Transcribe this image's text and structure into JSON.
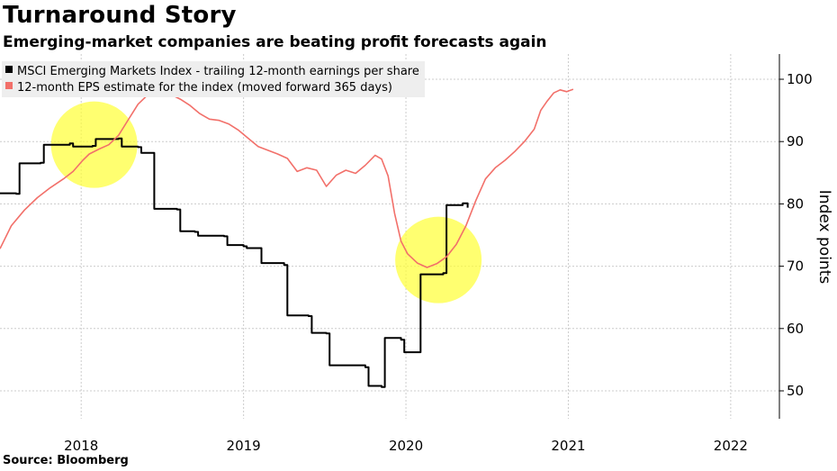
{
  "title": "Turnaround Story",
  "subtitle": "Emerging-market companies are beating profit forecasts again",
  "source": "Source: Bloomberg",
  "colors": {
    "eps": "#000000",
    "estimate": "#f2706a",
    "highlight": "#ffff33",
    "grid": "#cccccc"
  },
  "chart_data": {
    "type": "line",
    "ylabel": "Index points",
    "ylim": [
      45,
      104
    ],
    "xlim": [
      2017.55,
      2022.35
    ],
    "y_ticks": [
      50,
      60,
      70,
      80,
      90,
      100
    ],
    "x_ticks": [
      {
        "x": 2018.05,
        "label": "2018"
      },
      {
        "x": 2019.05,
        "label": "2019"
      },
      {
        "x": 2020.05,
        "label": "2020"
      },
      {
        "x": 2021.05,
        "label": "2021"
      },
      {
        "x": 2022.05,
        "label": "2022"
      }
    ],
    "legend_position": "top-left",
    "grid": true,
    "series": [
      {
        "name": "MSCI Emerging Markets Index - trailing 12-month earnings per share",
        "color": "#000000",
        "style": "step",
        "points": [
          [
            2017.55,
            81.7
          ],
          [
            2017.65,
            81.6
          ],
          [
            2017.67,
            86.5
          ],
          [
            2017.8,
            86.6
          ],
          [
            2017.82,
            89.5
          ],
          [
            2017.98,
            89.7
          ],
          [
            2018.0,
            89.2
          ],
          [
            2018.12,
            89.3
          ],
          [
            2018.14,
            90.4
          ],
          [
            2018.28,
            90.5
          ],
          [
            2018.3,
            89.2
          ],
          [
            2018.4,
            89.1
          ],
          [
            2018.42,
            88.2
          ],
          [
            2018.48,
            88.2
          ],
          [
            2018.5,
            79.2
          ],
          [
            2018.64,
            79.1
          ],
          [
            2018.66,
            75.6
          ],
          [
            2018.75,
            75.5
          ],
          [
            2018.77,
            74.9
          ],
          [
            2018.93,
            74.8
          ],
          [
            2018.95,
            73.4
          ],
          [
            2019.05,
            73.2
          ],
          [
            2019.07,
            72.9
          ],
          [
            2019.14,
            72.9
          ],
          [
            2019.16,
            70.5
          ],
          [
            2019.3,
            70.2
          ],
          [
            2019.32,
            62.1
          ],
          [
            2019.45,
            62.0
          ],
          [
            2019.47,
            59.3
          ],
          [
            2019.56,
            59.2
          ],
          [
            2019.58,
            54.1
          ],
          [
            2019.8,
            53.8
          ],
          [
            2019.82,
            50.8
          ],
          [
            2019.9,
            50.6
          ],
          [
            2019.92,
            58.5
          ],
          [
            2020.02,
            58.2
          ],
          [
            2020.04,
            56.2
          ],
          [
            2020.12,
            56.2
          ],
          [
            2020.14,
            68.7
          ],
          [
            2020.28,
            68.9
          ],
          [
            2020.3,
            79.8
          ],
          [
            2020.4,
            80.1
          ],
          [
            2020.43,
            79.4
          ]
        ]
      },
      {
        "name": "12-month EPS estimate for the index (moved forward 365 days)",
        "color": "#f2706a",
        "style": "line",
        "points": [
          [
            2017.55,
            72.8
          ],
          [
            2017.62,
            76.5
          ],
          [
            2017.7,
            79.0
          ],
          [
            2017.78,
            81.0
          ],
          [
            2017.86,
            82.6
          ],
          [
            2017.94,
            84.0
          ],
          [
            2018.0,
            85.2
          ],
          [
            2018.06,
            87.0
          ],
          [
            2018.1,
            88.0
          ],
          [
            2018.16,
            88.8
          ],
          [
            2018.22,
            89.5
          ],
          [
            2018.28,
            91.0
          ],
          [
            2018.34,
            93.5
          ],
          [
            2018.4,
            96.0
          ],
          [
            2018.46,
            97.5
          ],
          [
            2018.5,
            98.2
          ],
          [
            2018.56,
            98.0
          ],
          [
            2018.6,
            97.6
          ],
          [
            2018.66,
            96.8
          ],
          [
            2018.72,
            95.8
          ],
          [
            2018.78,
            94.5
          ],
          [
            2018.84,
            93.6
          ],
          [
            2018.9,
            93.4
          ],
          [
            2018.96,
            92.8
          ],
          [
            2019.02,
            91.8
          ],
          [
            2019.08,
            90.5
          ],
          [
            2019.14,
            89.2
          ],
          [
            2019.2,
            88.6
          ],
          [
            2019.26,
            88.0
          ],
          [
            2019.32,
            87.3
          ],
          [
            2019.38,
            85.2
          ],
          [
            2019.44,
            85.8
          ],
          [
            2019.5,
            85.4
          ],
          [
            2019.56,
            82.8
          ],
          [
            2019.62,
            84.6
          ],
          [
            2019.68,
            85.4
          ],
          [
            2019.74,
            84.9
          ],
          [
            2019.8,
            86.2
          ],
          [
            2019.86,
            87.8
          ],
          [
            2019.9,
            87.2
          ],
          [
            2019.94,
            84.5
          ],
          [
            2019.98,
            78.5
          ],
          [
            2020.02,
            74.0
          ],
          [
            2020.06,
            72.0
          ],
          [
            2020.12,
            70.5
          ],
          [
            2020.18,
            69.8
          ],
          [
            2020.24,
            70.4
          ],
          [
            2020.3,
            71.5
          ],
          [
            2020.36,
            73.5
          ],
          [
            2020.42,
            76.5
          ],
          [
            2020.48,
            80.5
          ],
          [
            2020.54,
            84.0
          ],
          [
            2020.6,
            85.8
          ],
          [
            2020.66,
            87.0
          ],
          [
            2020.72,
            88.4
          ],
          [
            2020.78,
            90.0
          ],
          [
            2020.84,
            92.0
          ],
          [
            2020.88,
            95.0
          ],
          [
            2020.92,
            96.5
          ],
          [
            2020.96,
            97.8
          ],
          [
            2021.0,
            98.3
          ],
          [
            2021.04,
            98.0
          ],
          [
            2021.08,
            98.4
          ]
        ]
      }
    ],
    "annotations": [
      {
        "type": "circle",
        "x": 2018.13,
        "y": 89.5
      },
      {
        "type": "circle",
        "x": 2020.25,
        "y": 71.0
      }
    ]
  }
}
